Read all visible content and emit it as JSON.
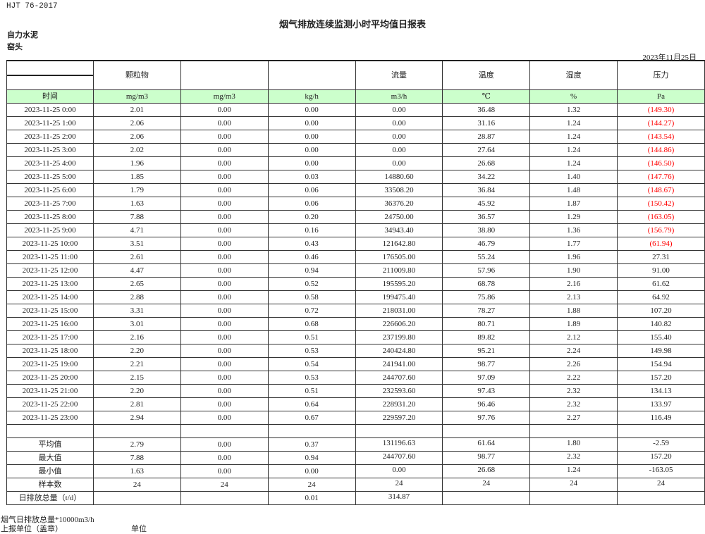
{
  "standard": "HJT  76-2017",
  "title": "烟气排放连续监测小时平均值日报表",
  "company": "自力水泥",
  "unit_name": "窑头",
  "report_date": "2023年11月25日",
  "colors": {
    "unit_row_bg": "#ccffcc",
    "negative_text": "#ff0000"
  },
  "header": [
    "",
    "颗粒物",
    "",
    "",
    "流量",
    "温度",
    "湿度",
    "压力"
  ],
  "units": [
    "时间",
    "mg/m3",
    "mg/m3",
    "kg/h",
    "m3/h",
    "℃",
    "%",
    "Pa"
  ],
  "rows": [
    [
      "2023-11-25 0:00",
      "2.01",
      "0.00",
      "0.00",
      "0.00",
      "36.48",
      "1.32",
      "(149.30)"
    ],
    [
      "2023-11-25 1:00",
      "2.06",
      "0.00",
      "0.00",
      "0.00",
      "31.16",
      "1.24",
      "(144.27)"
    ],
    [
      "2023-11-25 2:00",
      "2.06",
      "0.00",
      "0.00",
      "0.00",
      "28.87",
      "1.24",
      "(143.54)"
    ],
    [
      "2023-11-25 3:00",
      "2.02",
      "0.00",
      "0.00",
      "0.00",
      "27.64",
      "1.24",
      "(144.86)"
    ],
    [
      "2023-11-25 4:00",
      "1.96",
      "0.00",
      "0.00",
      "0.00",
      "26.68",
      "1.24",
      "(146.50)"
    ],
    [
      "2023-11-25 5:00",
      "1.85",
      "0.00",
      "0.03",
      "14880.60",
      "34.22",
      "1.40",
      "(147.76)"
    ],
    [
      "2023-11-25 6:00",
      "1.79",
      "0.00",
      "0.06",
      "33508.20",
      "36.84",
      "1.48",
      "(148.67)"
    ],
    [
      "2023-11-25 7:00",
      "1.63",
      "0.00",
      "0.06",
      "36376.20",
      "45.92",
      "1.87",
      "(150.42)"
    ],
    [
      "2023-11-25 8:00",
      "7.88",
      "0.00",
      "0.20",
      "24750.00",
      "36.57",
      "1.29",
      "(163.05)"
    ],
    [
      "2023-11-25 9:00",
      "4.71",
      "0.00",
      "0.16",
      "34943.40",
      "38.80",
      "1.36",
      "(156.79)"
    ],
    [
      "2023-11-25 10:00",
      "3.51",
      "0.00",
      "0.43",
      "121642.80",
      "46.79",
      "1.77",
      "(61.94)"
    ],
    [
      "2023-11-25 11:00",
      "2.61",
      "0.00",
      "0.46",
      "176505.00",
      "55.24",
      "1.96",
      "27.31"
    ],
    [
      "2023-11-25 12:00",
      "4.47",
      "0.00",
      "0.94",
      "211009.80",
      "57.96",
      "1.90",
      "91.00"
    ],
    [
      "2023-11-25 13:00",
      "2.65",
      "0.00",
      "0.52",
      "195595.20",
      "68.78",
      "2.16",
      "61.62"
    ],
    [
      "2023-11-25 14:00",
      "2.88",
      "0.00",
      "0.58",
      "199475.40",
      "75.86",
      "2.13",
      "64.92"
    ],
    [
      "2023-11-25 15:00",
      "3.31",
      "0.00",
      "0.72",
      "218031.00",
      "78.27",
      "1.88",
      "107.20"
    ],
    [
      "2023-11-25 16:00",
      "3.01",
      "0.00",
      "0.68",
      "226606.20",
      "80.71",
      "1.89",
      "140.82"
    ],
    [
      "2023-11-25 17:00",
      "2.16",
      "0.00",
      "0.51",
      "237199.80",
      "89.82",
      "2.12",
      "155.40"
    ],
    [
      "2023-11-25 18:00",
      "2.20",
      "0.00",
      "0.53",
      "240424.80",
      "95.21",
      "2.24",
      "149.98"
    ],
    [
      "2023-11-25 19:00",
      "2.21",
      "0.00",
      "0.54",
      "241941.00",
      "98.77",
      "2.26",
      "154.94"
    ],
    [
      "2023-11-25 20:00",
      "2.15",
      "0.00",
      "0.53",
      "244707.60",
      "97.09",
      "2.22",
      "157.20"
    ],
    [
      "2023-11-25 21:00",
      "2.20",
      "0.00",
      "0.51",
      "232593.60",
      "97.43",
      "2.32",
      "134.13"
    ],
    [
      "2023-11-25 22:00",
      "2.81",
      "0.00",
      "0.64",
      "228931.20",
      "96.46",
      "2.32",
      "133.97"
    ],
    [
      "2023-11-25 23:00",
      "2.94",
      "0.00",
      "0.67",
      "229597.20",
      "97.76",
      "2.27",
      "116.49"
    ]
  ],
  "summary": [
    [
      "平均值",
      "2.79",
      "0.00",
      "0.37",
      "131196.63",
      "61.64",
      "1.80",
      "-2.59"
    ],
    [
      "最大值",
      "7.88",
      "0.00",
      "0.94",
      "244707.60",
      "98.77",
      "2.32",
      "157.20"
    ],
    [
      "最小值",
      "1.63",
      "0.00",
      "0.00",
      "0.00",
      "26.68",
      "1.24",
      "-163.05"
    ],
    [
      "样本数",
      "24",
      "24",
      "24",
      "24",
      "24",
      "24",
      "24"
    ],
    [
      "日排放总量（t/d）",
      "",
      "",
      "0.01",
      "314.87",
      "",
      "",
      ""
    ]
  ],
  "footer": {
    "note": "烟气日排放总量*10000m3/h",
    "reporter_label": "上报单位（盖章）",
    "unit_label": "单位"
  }
}
